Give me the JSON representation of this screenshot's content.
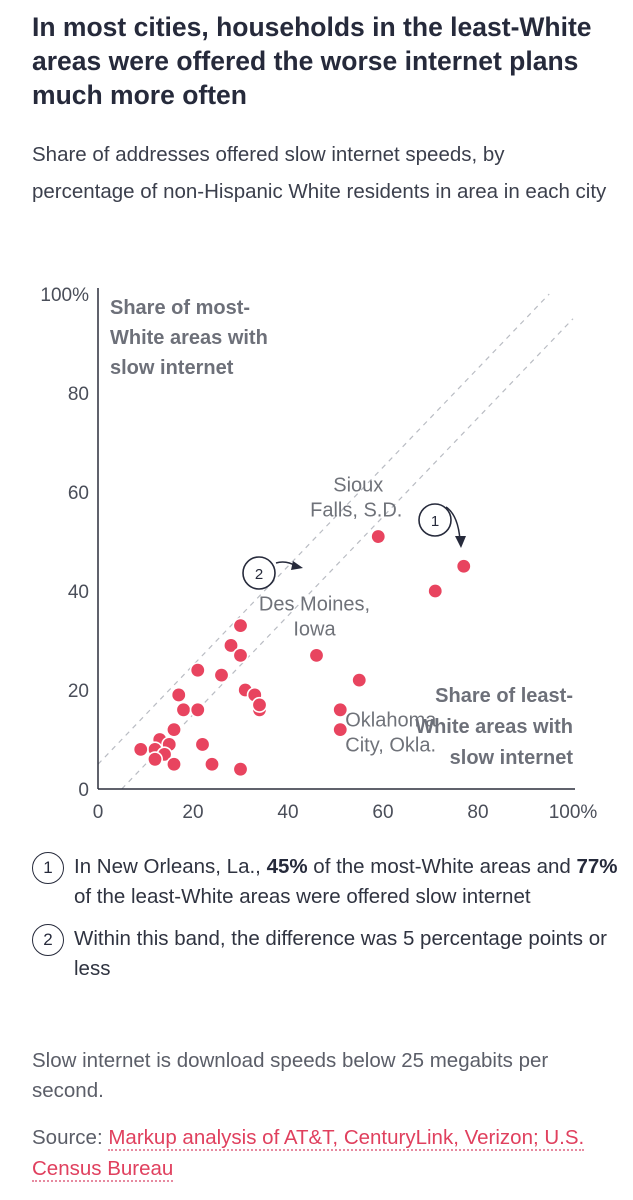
{
  "header": {
    "title": "In most cities, households in the least-White areas were offered the worse internet plans much more often",
    "subtitle": "Share of addresses offered slow internet speeds, by percentage of non-Hispanic White residents in area in each city"
  },
  "chart_data": {
    "type": "scatter",
    "xlim": [
      0,
      100
    ],
    "ylim": [
      0,
      100
    ],
    "x_ticks": [
      "0",
      "20",
      "40",
      "60",
      "80",
      "100%"
    ],
    "y_ticks": [
      "0",
      "20",
      "40",
      "60",
      "80",
      "100%"
    ],
    "xlabel_lines": [
      "Share of least-",
      "White areas with",
      "slow internet"
    ],
    "ylabel_lines": [
      "Share of most-",
      "White areas with",
      "slow internet"
    ],
    "point_color": "#e8445f",
    "band_width_points": 5,
    "grid": false,
    "points": [
      {
        "x": 77,
        "y": 45
      },
      {
        "x": 71,
        "y": 40
      },
      {
        "x": 59,
        "y": 51
      },
      {
        "x": 55,
        "y": 22
      },
      {
        "x": 51,
        "y": 16
      },
      {
        "x": 51,
        "y": 12
      },
      {
        "x": 46,
        "y": 27
      },
      {
        "x": 30,
        "y": 33
      },
      {
        "x": 28,
        "y": 29
      },
      {
        "x": 30,
        "y": 27
      },
      {
        "x": 26,
        "y": 23
      },
      {
        "x": 21,
        "y": 24
      },
      {
        "x": 31,
        "y": 20
      },
      {
        "x": 33,
        "y": 19
      },
      {
        "x": 34,
        "y": 16
      },
      {
        "x": 34,
        "y": 17
      },
      {
        "x": 17,
        "y": 19
      },
      {
        "x": 18,
        "y": 16
      },
      {
        "x": 21,
        "y": 16
      },
      {
        "x": 16,
        "y": 12
      },
      {
        "x": 13,
        "y": 10
      },
      {
        "x": 15,
        "y": 9
      },
      {
        "x": 12,
        "y": 8
      },
      {
        "x": 9,
        "y": 8
      },
      {
        "x": 14,
        "y": 7
      },
      {
        "x": 12,
        "y": 6
      },
      {
        "x": 16,
        "y": 5
      },
      {
        "x": 22,
        "y": 9
      },
      {
        "x": 24,
        "y": 5
      },
      {
        "x": 30,
        "y": 4
      }
    ],
    "city_labels": [
      {
        "lines": [
          "Sioux",
          "Falls, S.D."
        ],
        "x": 59,
        "y": 51
      },
      {
        "lines": [
          "Des Moines,",
          "Iowa"
        ],
        "x": 46,
        "y": 27
      },
      {
        "lines": [
          "Oklahoma",
          "City, Okla."
        ],
        "x": 51,
        "y": 12
      }
    ],
    "callouts": [
      {
        "num": "1",
        "x": 77,
        "y": 45
      },
      {
        "num": "2",
        "x": 43,
        "y": 44
      }
    ]
  },
  "notes": [
    {
      "num": "1",
      "parts": [
        "In New Orleans, La., ",
        "45%",
        " of the most-White areas and ",
        "77%",
        " of the least-White areas were offered slow internet"
      ]
    },
    {
      "num": "2",
      "parts": [
        "Within this band, the difference was 5 percentage points or less"
      ]
    }
  ],
  "footnote": "Slow internet is download speeds below 25 megabits per second.",
  "source": {
    "label": "Source:",
    "text": "Markup analysis of AT&T, CenturyLink, Verizon; U.S. Census Bureau"
  }
}
